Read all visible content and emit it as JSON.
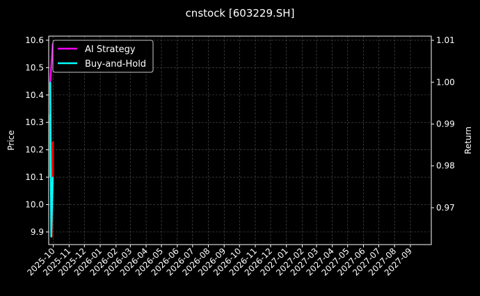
{
  "chart_data": {
    "type": "line",
    "title": "cnstock [603229.SH]",
    "ylabel": "Price",
    "y2label": "Return",
    "xlim": [
      "2025-09-22",
      "2027-10-12"
    ],
    "ylim": [
      9.854,
      10.615
    ],
    "y2lim": [
      0.9612,
      1.011
    ],
    "grid": true,
    "legend_position": "top-left",
    "x_ticks": [
      "2025-10",
      "2025-11",
      "2025-12",
      "2026-01",
      "2026-02",
      "2026-03",
      "2026-04",
      "2026-05",
      "2026-06",
      "2026-07",
      "2026-08",
      "2026-09",
      "2026-10",
      "2026-11",
      "2026-12",
      "2027-01",
      "2027-02",
      "2027-03",
      "2027-04",
      "2027-05",
      "2027-06",
      "2027-07",
      "2027-08",
      "2027-09"
    ],
    "y_ticks": [
      9.9,
      10.0,
      10.1,
      10.2,
      10.3,
      10.4,
      10.5,
      10.6
    ],
    "y_tick_labels": [
      "9.9",
      "10.0",
      "10.1",
      "10.2",
      "10.3",
      "10.4",
      "10.5",
      "10.6"
    ],
    "y2_ticks": [
      0.97,
      0.98,
      0.99,
      1.0,
      1.01
    ],
    "y2_tick_labels": [
      "0.97",
      "0.98",
      "0.99",
      "1.00",
      "1.01"
    ],
    "candles": [
      {
        "date": "2025-09-25",
        "open": 10.33,
        "high": 10.42,
        "low": 10.1,
        "close": 10.1
      },
      {
        "date": "2025-09-30",
        "open": 10.23,
        "high": 10.23,
        "low": 9.88,
        "close": 10.1
      }
    ],
    "series": [
      {
        "name": "AI Strategy",
        "color": "#ff00ff",
        "x": [
          "2025-09-25",
          "2025-09-30"
        ],
        "values": [
          1.0,
          1.0092
        ]
      },
      {
        "name": "Buy-and-Hold",
        "color": "#00ffff",
        "x": [
          "2025-09-25",
          "2025-09-27",
          "2025-09-30"
        ],
        "values": [
          1.0,
          0.963,
          0.9773
        ]
      }
    ],
    "colors": {
      "up": "#00a050",
      "down": "#ff0000"
    }
  }
}
